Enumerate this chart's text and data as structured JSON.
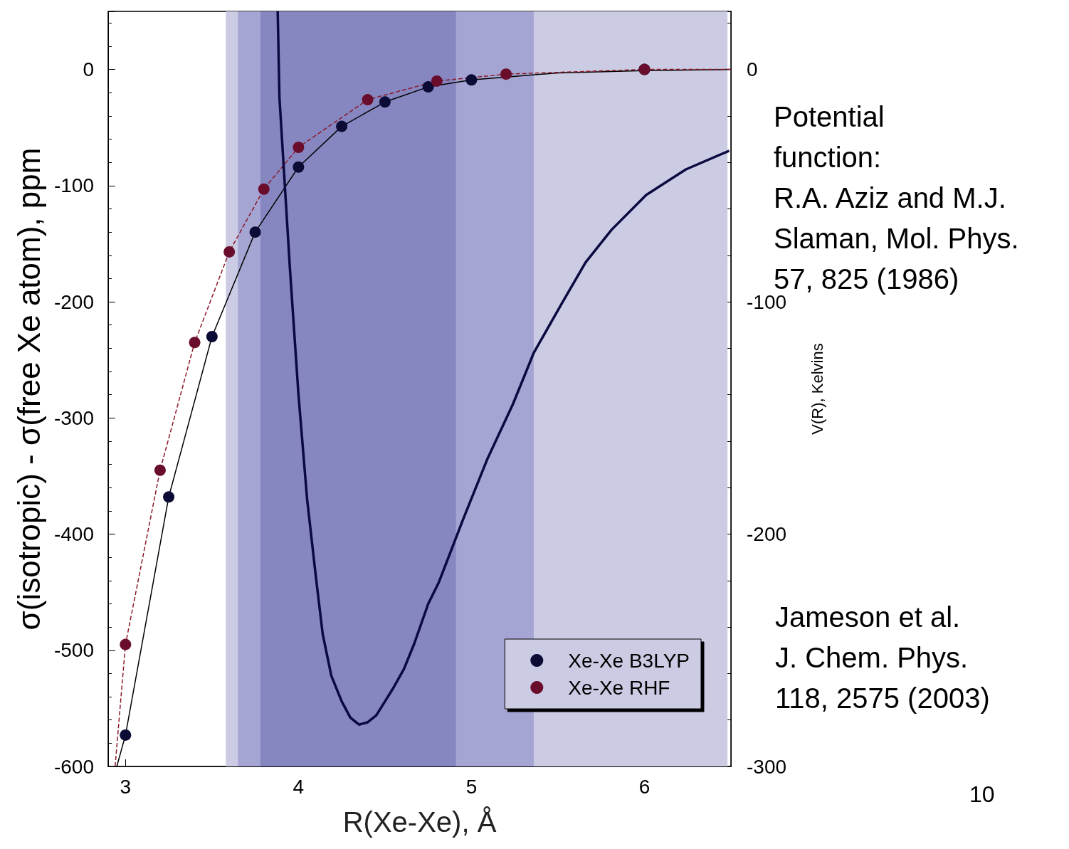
{
  "chart_data": {
    "type": "scatter",
    "xlabel": "R(Xe-Xe), Å",
    "ylabel": "σ(isotropic) - σ(free Xe atom), ppm",
    "y2label": "V(R), Kelvins",
    "xlim": [
      2.9,
      6.5
    ],
    "xticks": [
      3,
      4,
      5,
      6
    ],
    "ylim": [
      -600,
      50
    ],
    "yticks": [
      -600,
      -500,
      -400,
      -300,
      -200,
      -100,
      0
    ],
    "y2lim": [
      -300,
      25
    ],
    "y2ticks": [
      -300,
      -200,
      -100,
      0
    ],
    "grid": false,
    "legend": "bottom right",
    "bands": [
      {
        "axis": "x",
        "from": 3.58,
        "to": 6.48,
        "color": "#cbcbe4"
      },
      {
        "axis": "x",
        "from": 3.65,
        "to": 5.36,
        "color": "#a5a5d3"
      },
      {
        "axis": "x",
        "from": 3.78,
        "to": 4.91,
        "color": "#8686c1"
      }
    ],
    "series": [
      {
        "type": "line",
        "color": "#000000",
        "marker": "none",
        "line_style": "solid",
        "x": [
          2.95,
          3.0,
          3.25,
          3.5,
          3.75,
          4.0,
          4.25,
          4.5,
          4.75,
          5.0,
          5.5,
          6.0,
          6.5
        ],
        "values": [
          -600,
          -573,
          -368,
          -230,
          -140,
          -84,
          -49,
          -28,
          -15,
          -9,
          -3,
          -1,
          0
        ]
      },
      {
        "type": "line",
        "color": "#8b1a2a",
        "marker": "none",
        "line_style": "dashed",
        "x": [
          2.94,
          3.0,
          3.2,
          3.4,
          3.6,
          3.8,
          4.0,
          4.4,
          4.8,
          5.2,
          6.0,
          6.5
        ],
        "values": [
          -600,
          -495,
          -345,
          -235,
          -157,
          -103,
          -67,
          -26,
          -10,
          -4,
          0,
          0
        ]
      },
      {
        "type": "line",
        "axis": "y2",
        "color": "#0a0a40",
        "marker": "none",
        "line_style": "solid",
        "x": [
          3.88,
          3.89,
          3.95,
          4.0,
          4.05,
          4.1,
          4.14,
          4.19,
          4.25,
          4.3,
          4.35,
          4.4,
          4.45,
          4.5,
          4.55,
          4.61,
          4.67,
          4.75,
          4.81,
          4.95,
          5.09,
          5.24,
          5.36,
          5.52,
          5.66,
          5.81,
          6.01,
          6.24,
          6.49
        ],
        "values": [
          25,
          -12,
          -85,
          -140,
          -185,
          -218,
          -243,
          -261,
          -272,
          -279,
          -282,
          -281,
          -278,
          -272,
          -266,
          -258,
          -247,
          -230,
          -221,
          -194,
          -168,
          -144,
          -122,
          -101,
          -83,
          -69,
          -54,
          -43,
          -35
        ]
      },
      {
        "name": "Xe-Xe B3LYP",
        "color": "#0b0b36",
        "marker": "circle",
        "x": [
          3.0,
          3.25,
          3.5,
          3.75,
          4.0,
          4.25,
          4.5,
          4.75,
          5.0,
          6.0
        ],
        "values": [
          -573,
          -368,
          -230,
          -140,
          -84,
          -49,
          -28,
          -15,
          -9,
          0
        ]
      },
      {
        "name": "Xe-Xe RHF",
        "color": "#6a0d2c",
        "marker": "circle",
        "x": [
          3.0,
          3.2,
          3.4,
          3.6,
          3.8,
          4.0,
          4.4,
          4.8,
          5.2,
          6.0
        ],
        "values": [
          -495,
          -345,
          -235,
          -157,
          -103,
          -67,
          -26,
          -10,
          -4,
          0
        ]
      }
    ],
    "annotations": [
      "Potential function:\nR.A. Aziz and M.J.\nSlaman, Mol. Phys.\n57, 825 (1986)",
      "Jameson et al.\nJ. Chem. Phys.\n118, 2575 (2003)",
      "10"
    ]
  }
}
